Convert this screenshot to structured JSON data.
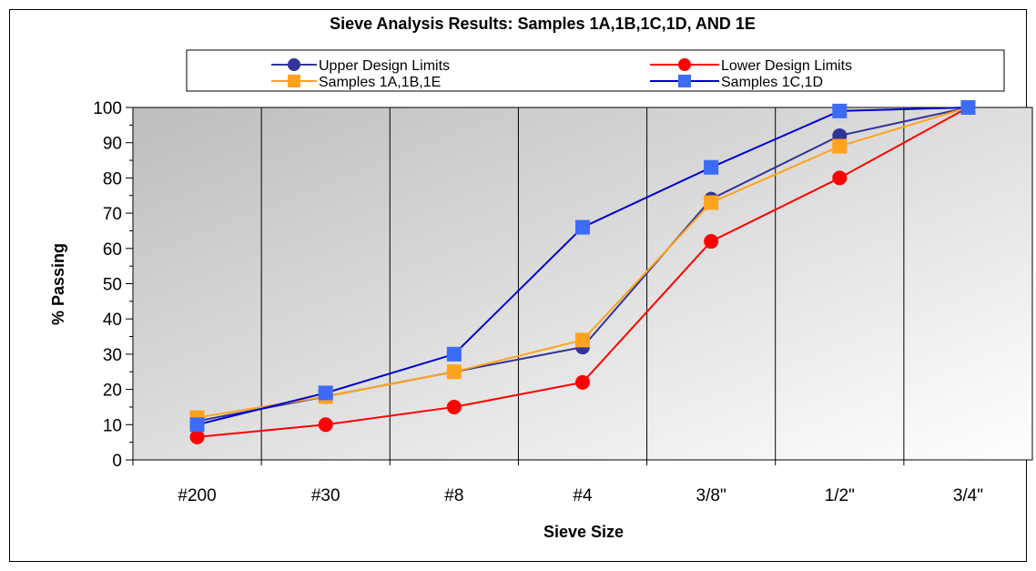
{
  "chart_data": {
    "type": "line",
    "title": "Sieve Analysis Results: Samples 1A,1B,1C,1D, AND 1E",
    "xlabel": "Sieve Size",
    "ylabel": "% Passing",
    "categories": [
      "#200",
      "#30",
      "#8",
      "#4",
      "3/8\"",
      "1/2\"",
      "3/4\""
    ],
    "ylim": [
      0,
      100
    ],
    "yticks": [
      0,
      10,
      20,
      30,
      40,
      50,
      60,
      70,
      80,
      90,
      100
    ],
    "grid": true,
    "legend_position": "top",
    "series": [
      {
        "name": "Upper Design Limits",
        "values": [
          11,
          18,
          25,
          32,
          74,
          92,
          100
        ],
        "color": "#333399",
        "marker": "circle"
      },
      {
        "name": "Lower Design Limits",
        "values": [
          6.5,
          10,
          15,
          22,
          62,
          80,
          100
        ],
        "color": "#ff0000",
        "marker": "circle"
      },
      {
        "name": "Samples 1A,1B,1E",
        "values": [
          12,
          18,
          25,
          34,
          73,
          89,
          100
        ],
        "color": "#ffa31a",
        "marker": "square"
      },
      {
        "name": "Samples 1C,1D",
        "values": [
          10,
          19,
          30,
          66,
          83,
          99,
          100
        ],
        "color": "#0000cc",
        "marker": "square",
        "marker_color": "#3d6bf5"
      }
    ]
  }
}
